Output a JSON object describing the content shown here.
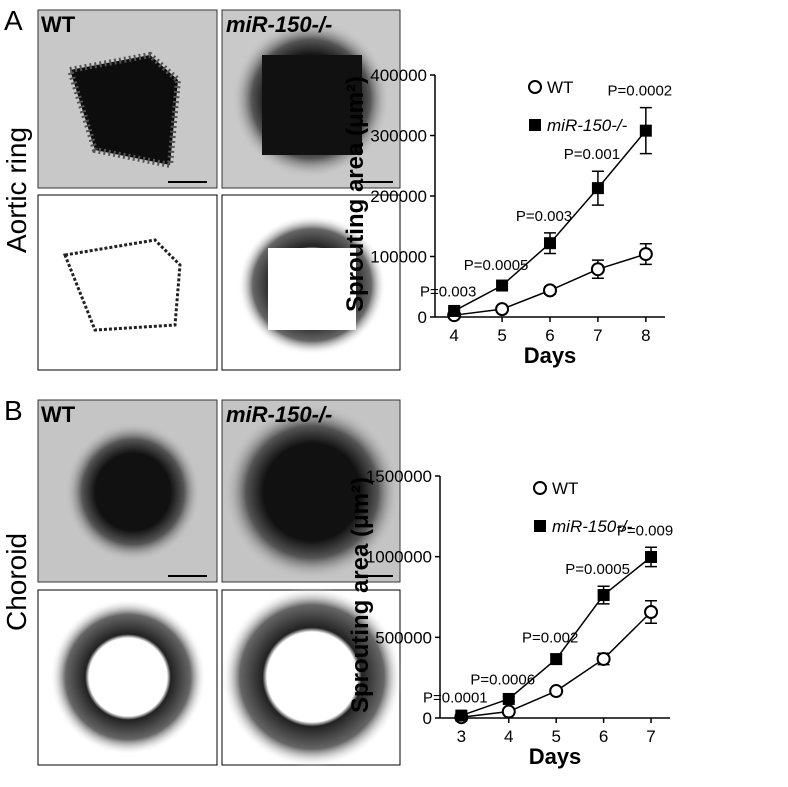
{
  "figure": {
    "panels": [
      {
        "letter": "A",
        "row_label": "Aortic ring",
        "left_label": "WT",
        "right_label": "miR-150-/-"
      },
      {
        "letter": "B",
        "row_label": "Choroid",
        "left_label": "WT",
        "right_label": "miR-150-/-"
      }
    ]
  },
  "chart_data": [
    {
      "type": "line",
      "xlabel": "Days",
      "ylabel": "Sprouting area (μm²)",
      "x": [
        4,
        5,
        6,
        7,
        8
      ],
      "xlim": [
        3.6,
        8.4
      ],
      "xticks": [
        4,
        5,
        6,
        7,
        8
      ],
      "ylim": [
        0,
        400000
      ],
      "yticks": [
        0,
        100000,
        200000,
        300000,
        400000
      ],
      "series": [
        {
          "name": "WT",
          "color": "#000000",
          "marker": "circle",
          "values": [
            3000,
            13000,
            44000,
            79000,
            104000
          ],
          "errors": [
            3000,
            4000,
            6000,
            15000,
            17000
          ]
        },
        {
          "name": "miR-150-/-",
          "color": "#000000",
          "marker": "square",
          "values": [
            10000,
            52000,
            122000,
            213000,
            308000
          ],
          "errors": [
            4000,
            6000,
            17000,
            28000,
            38000
          ]
        }
      ],
      "annotations": [
        "P=0.003",
        "P=0.0005",
        "P=0.003",
        "P=0.001",
        "P=0.0002"
      ]
    },
    {
      "type": "line",
      "xlabel": "Days",
      "ylabel": "Sprouting area (μm²)",
      "x": [
        3,
        4,
        5,
        6,
        7
      ],
      "xlim": [
        2.55,
        7.4
      ],
      "xticks": [
        3,
        4,
        5,
        6,
        7
      ],
      "ylim": [
        0,
        1500000
      ],
      "yticks": [
        0,
        500000,
        1000000,
        1500000
      ],
      "series": [
        {
          "name": "WT",
          "color": "#000000",
          "marker": "circle",
          "values": [
            5000,
            40000,
            167000,
            366000,
            657000
          ],
          "errors": [
            5000,
            10000,
            15000,
            35000,
            70000
          ]
        },
        {
          "name": "miR-150-/-",
          "color": "#000000",
          "marker": "square",
          "values": [
            15000,
            118000,
            365000,
            762000,
            998000
          ],
          "errors": [
            8000,
            15000,
            30000,
            55000,
            60000
          ]
        }
      ],
      "annotations": [
        "P=0.0001",
        "P=0.0006",
        "P=0.002",
        "P=0.0005",
        "P=0.009"
      ]
    }
  ]
}
